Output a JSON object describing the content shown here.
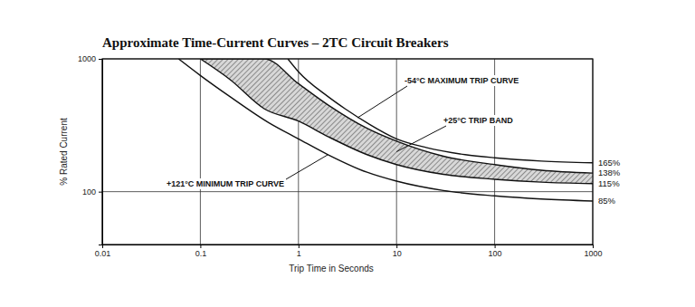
{
  "chart_data": {
    "type": "line",
    "title": "Approximate Time-Current Curves – 2TC Circuit Breakers",
    "x_label": "Trip Time in Seconds",
    "y_label": "% Rated Current",
    "log": true,
    "grid": true,
    "xlim": [
      0.01,
      1000
    ],
    "ylim": [
      40,
      1000
    ],
    "xticks": [
      0.01,
      0.1,
      1,
      10,
      100,
      1000
    ],
    "yticks": [
      100,
      1000
    ],
    "series": [
      {
        "type": "line",
        "color": "#111111",
        "x": [
          0.78,
          1,
          2,
          3,
          5,
          10,
          20,
          50,
          100,
          300,
          1000
        ],
        "values": [
          1000,
          800,
          520,
          420,
          330,
          250,
          215,
          190,
          180,
          170,
          165
        ]
      },
      {
        "type": "area",
        "color": "#111111",
        "x": [
          0.1,
          0.2,
          0.45,
          1,
          2,
          5,
          10,
          30,
          100,
          300,
          1000
        ],
        "values": [
          1000,
          1000,
          1000,
          650,
          450,
          300,
          240,
          185,
          160,
          145,
          138
        ],
        "lower": [
          1000,
          700,
          420,
          340,
          260,
          190,
          160,
          135,
          124,
          118,
          115
        ]
      },
      {
        "type": "line",
        "color": "#111111",
        "x": [
          0.06,
          0.1,
          0.2,
          0.5,
          1,
          2,
          5,
          10,
          30,
          100,
          300,
          1000
        ],
        "values": [
          1000,
          750,
          520,
          330,
          250,
          190,
          140,
          120,
          102,
          93,
          88,
          85
        ]
      }
    ],
    "annotations": [
      {
        "text": "-54°C MAXIMUM TRIP CURVE",
        "x": 4,
        "y": 360
      },
      {
        "text": "+25°C TRIP BAND",
        "x": 10,
        "y": 200
      },
      {
        "text": "+121°C MINIMUM TRIP CURVE",
        "x": 2,
        "y": 190
      },
      {
        "text": "165%",
        "x": 1000,
        "y": 165
      },
      {
        "text": "138%",
        "x": 1000,
        "y": 138
      },
      {
        "text": "115%",
        "x": 1000,
        "y": 115
      },
      {
        "text": "85%",
        "x": 1000,
        "y": 85
      }
    ]
  }
}
